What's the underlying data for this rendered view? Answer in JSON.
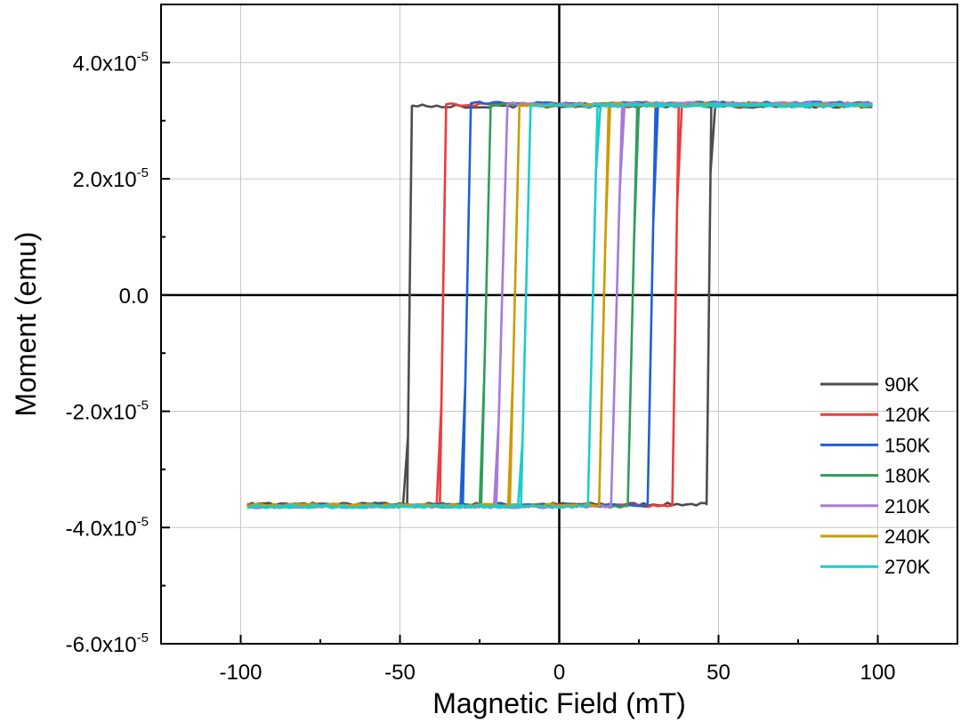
{
  "chart_data": {
    "type": "line",
    "title": "",
    "xlabel": "Magnetic Field (mT)",
    "ylabel": "Moment (emu)",
    "xlim": [
      -125,
      125
    ],
    "ylim": [
      -6e-05,
      5e-05
    ],
    "x_ticks": [
      -100,
      -50,
      0,
      50,
      100
    ],
    "x_tick_labels": [
      "-100",
      "-50",
      "0",
      "50",
      "100"
    ],
    "y_ticks": [
      -6e-05,
      -4e-05,
      -2e-05,
      0,
      2e-05,
      4e-05
    ],
    "y_tick_labels": [
      {
        "base": "-6.0x10",
        "exp": "-5"
      },
      {
        "base": "-4.0x10",
        "exp": "-5"
      },
      {
        "base": "-2.0x10",
        "exp": "-5"
      },
      {
        "base": "0.0",
        "exp": ""
      },
      {
        "base": "2.0x10",
        "exp": "-5"
      },
      {
        "base": "4.0x10",
        "exp": "-5"
      }
    ],
    "grid": true,
    "legend_position": "bottom-right",
    "field_range": [
      -98,
      98
    ],
    "series": [
      {
        "name": "90K",
        "color": "#4d4d4d",
        "coercive_field": 47.0,
        "switch_width": 1.5,
        "saturation_up": 3.25e-05,
        "saturation_down": -3.6e-05
      },
      {
        "name": "120K",
        "color": "#ee3b3b",
        "coercive_field": 36.5,
        "switch_width": 2.0,
        "saturation_up": 3.28e-05,
        "saturation_down": -3.62e-05
      },
      {
        "name": "150K",
        "color": "#1f5fd6",
        "coercive_field": 29.0,
        "switch_width": 2.5,
        "saturation_up": 3.3e-05,
        "saturation_down": -3.62e-05
      },
      {
        "name": "180K",
        "color": "#2e9e5b",
        "coercive_field": 23.0,
        "switch_width": 3.0,
        "saturation_up": 3.28e-05,
        "saturation_down": -3.63e-05
      },
      {
        "name": "210K",
        "color": "#a87ad8",
        "coercive_field": 18.0,
        "switch_width": 3.5,
        "saturation_up": 3.29e-05,
        "saturation_down": -3.64e-05
      },
      {
        "name": "240K",
        "color": "#cc9a06",
        "coercive_field": 14.0,
        "switch_width": 3.0,
        "saturation_up": 3.27e-05,
        "saturation_down": -3.62e-05
      },
      {
        "name": "270K",
        "color": "#1ccccc",
        "coercive_field": 10.5,
        "switch_width": 3.0,
        "saturation_up": 3.26e-05,
        "saturation_down": -3.64e-05
      }
    ]
  }
}
